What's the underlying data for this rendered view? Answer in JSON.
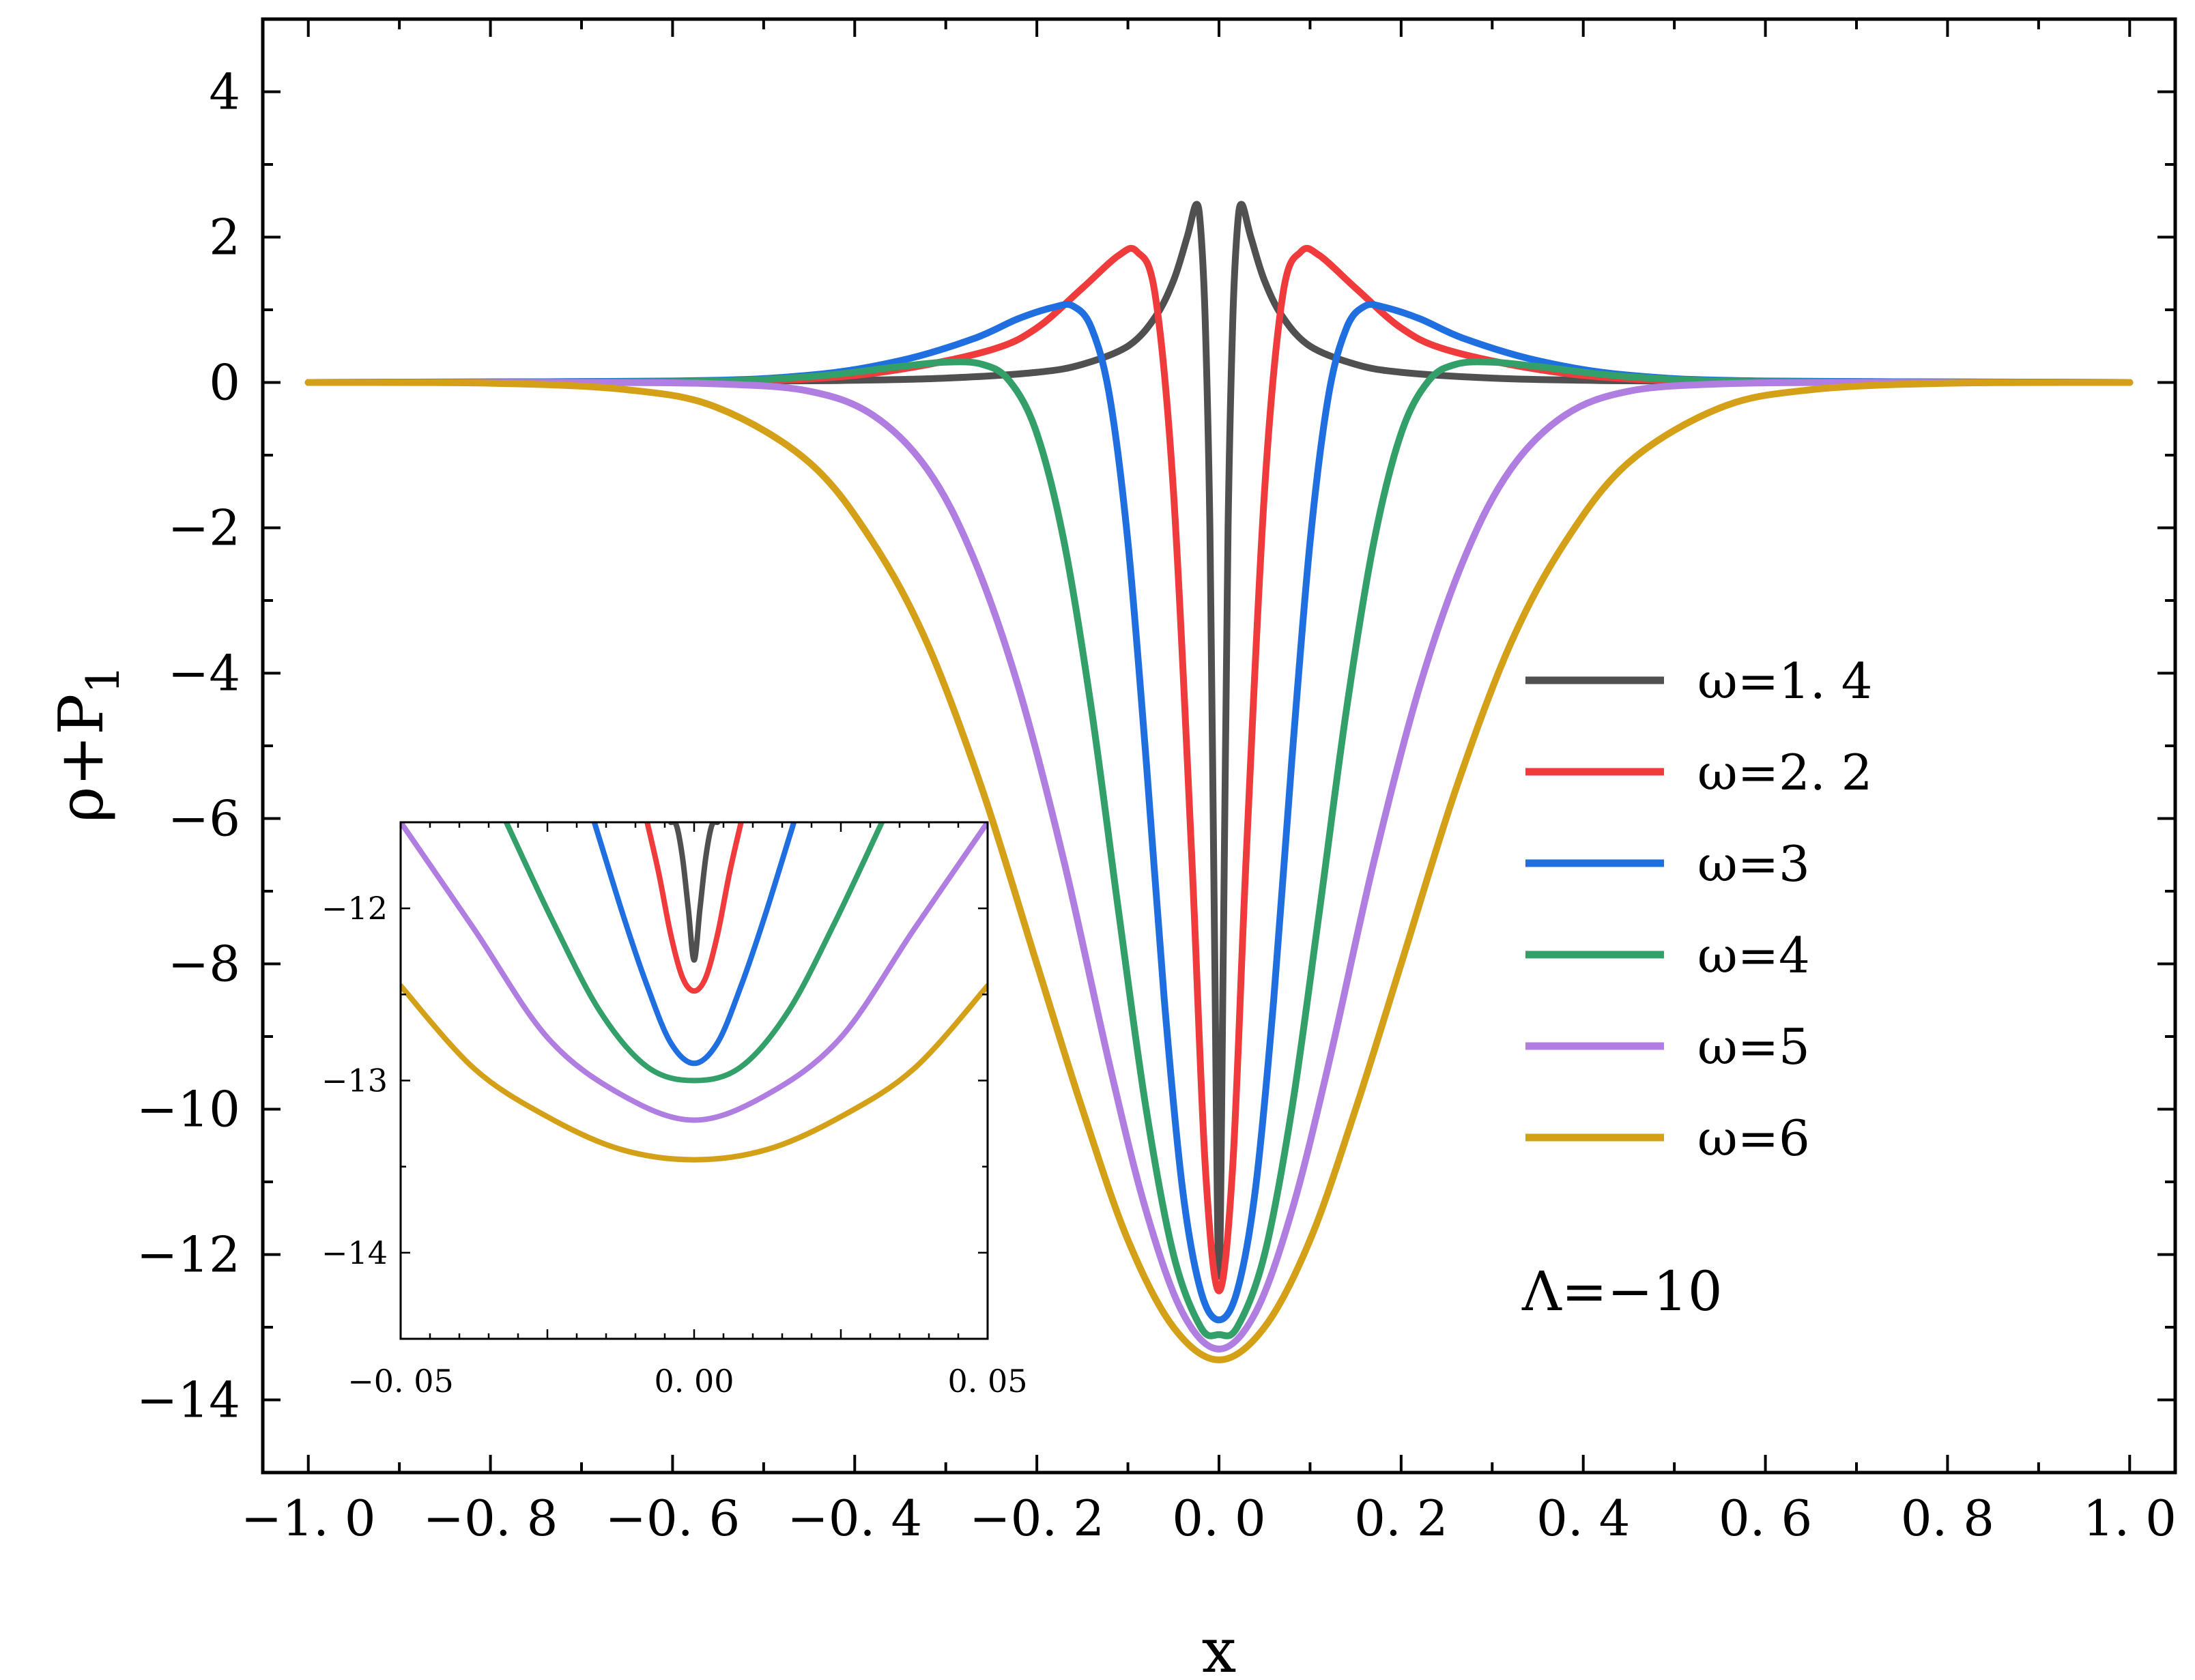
{
  "chart_data": [
    {
      "type": "line",
      "xlabel": "x",
      "ylabel": "ρ+P",
      "ylabel_sub": "1",
      "xlim": [
        -1.05,
        1.05
      ],
      "ylim": [
        -15,
        5
      ],
      "xticks": [
        -1.0,
        -0.8,
        -0.6,
        -0.4,
        -0.2,
        0.0,
        0.2,
        0.4,
        0.6,
        0.8,
        1.0
      ],
      "xtick_labels": [
        "−1. 0",
        "−0. 8",
        "−0. 6",
        "−0. 4",
        "−0. 2",
        "0. 0",
        "0. 2",
        "0. 4",
        "0. 6",
        "0. 8",
        "1. 0"
      ],
      "yticks": [
        4,
        2,
        0,
        -2,
        -4,
        -6,
        -8,
        -10,
        -12,
        -14
      ],
      "ytick_labels": [
        "4",
        "2",
        "0",
        "−2",
        "−4",
        "−6",
        "−8",
        "−10",
        "−12",
        "−14"
      ],
      "grid": false,
      "legend_position": "right",
      "annotation": "Λ=−10",
      "series": [
        {
          "name": "ω=1. 4",
          "color": "#505050",
          "x": [
            -1.0,
            -0.5,
            -0.4,
            -0.3,
            -0.2,
            -0.15,
            -0.1,
            -0.07,
            -0.05,
            -0.035,
            -0.025,
            -0.02,
            -0.015,
            -0.01,
            -0.005,
            0.0,
            0.005,
            0.01,
            0.015,
            0.02,
            0.025,
            0.035,
            0.05,
            0.07,
            0.1,
            0.15,
            0.2,
            0.3,
            0.4,
            0.5,
            1.0
          ],
          "values": [
            0.0,
            0.02,
            0.03,
            0.06,
            0.14,
            0.25,
            0.5,
            0.9,
            1.4,
            2.0,
            2.45,
            2.1,
            0.8,
            -2.0,
            -7.5,
            -12.3,
            -7.5,
            -2.0,
            0.8,
            2.1,
            2.45,
            2.0,
            1.4,
            0.9,
            0.5,
            0.25,
            0.14,
            0.06,
            0.03,
            0.02,
            0.0
          ]
        },
        {
          "name": "ω=2. 2",
          "color": "#ef3b3b",
          "x": [
            -1.0,
            -0.6,
            -0.45,
            -0.35,
            -0.25,
            -0.2,
            -0.15,
            -0.11,
            -0.09,
            -0.07,
            -0.05,
            -0.03,
            -0.015,
            0.0,
            0.015,
            0.03,
            0.05,
            0.07,
            0.09,
            0.11,
            0.15,
            0.2,
            0.25,
            0.35,
            0.45,
            0.6,
            1.0
          ],
          "values": [
            0.0,
            0.01,
            0.05,
            0.18,
            0.45,
            0.75,
            1.3,
            1.75,
            1.8,
            1.2,
            -1.5,
            -6.5,
            -10.8,
            -12.5,
            -10.8,
            -6.5,
            -1.5,
            1.2,
            1.8,
            1.75,
            1.3,
            0.75,
            0.45,
            0.18,
            0.05,
            0.01,
            0.0
          ]
        },
        {
          "name": "ω=3",
          "color": "#1f6fe0",
          "x": [
            -1.0,
            -0.6,
            -0.45,
            -0.35,
            -0.27,
            -0.22,
            -0.18,
            -0.16,
            -0.14,
            -0.12,
            -0.1,
            -0.08,
            -0.06,
            -0.04,
            -0.02,
            0.0,
            0.02,
            0.04,
            0.06,
            0.08,
            0.1,
            0.12,
            0.14,
            0.16,
            0.18,
            0.22,
            0.27,
            0.35,
            0.45,
            0.6,
            1.0
          ],
          "values": [
            0.0,
            0.02,
            0.1,
            0.3,
            0.6,
            0.88,
            1.04,
            1.05,
            0.75,
            -0.2,
            -2.2,
            -5.2,
            -8.5,
            -11.1,
            -12.5,
            -12.9,
            -12.5,
            -11.1,
            -8.5,
            -5.2,
            -2.2,
            -0.2,
            0.75,
            1.05,
            1.04,
            0.88,
            0.6,
            0.3,
            0.1,
            0.02,
            0.0
          ]
        },
        {
          "name": "ω=4",
          "color": "#33a06a",
          "x": [
            -1.0,
            -0.6,
            -0.45,
            -0.35,
            -0.3,
            -0.26,
            -0.23,
            -0.2,
            -0.17,
            -0.14,
            -0.11,
            -0.08,
            -0.05,
            -0.02,
            0.0,
            0.02,
            0.05,
            0.08,
            0.11,
            0.14,
            0.17,
            0.2,
            0.23,
            0.26,
            0.3,
            0.35,
            0.45,
            0.6,
            1.0
          ],
          "values": [
            0.0,
            0.01,
            0.08,
            0.22,
            0.28,
            0.25,
            0.02,
            -0.7,
            -2.2,
            -4.5,
            -7.3,
            -10.0,
            -12.0,
            -13.0,
            -13.1,
            -13.0,
            -12.0,
            -10.0,
            -7.3,
            -4.5,
            -2.2,
            -0.7,
            0.02,
            0.25,
            0.28,
            0.22,
            0.08,
            0.01,
            0.0
          ]
        },
        {
          "name": "ω=5",
          "color": "#b07de0",
          "x": [
            -1.0,
            -0.7,
            -0.55,
            -0.45,
            -0.38,
            -0.32,
            -0.27,
            -0.22,
            -0.17,
            -0.12,
            -0.08,
            -0.04,
            0.0,
            0.04,
            0.08,
            0.12,
            0.17,
            0.22,
            0.27,
            0.32,
            0.38,
            0.45,
            0.55,
            0.7,
            1.0
          ],
          "values": [
            0.0,
            0.0,
            -0.02,
            -0.12,
            -0.45,
            -1.2,
            -2.4,
            -4.2,
            -6.6,
            -9.4,
            -11.4,
            -12.8,
            -13.3,
            -12.8,
            -11.4,
            -9.4,
            -6.6,
            -4.2,
            -2.4,
            -1.2,
            -0.45,
            -0.12,
            -0.02,
            0.0,
            0.0
          ]
        },
        {
          "name": "ω=6",
          "color": "#d4a017",
          "x": [
            -1.0,
            -0.8,
            -0.65,
            -0.55,
            -0.45,
            -0.38,
            -0.32,
            -0.26,
            -0.2,
            -0.15,
            -0.1,
            -0.05,
            0.0,
            0.05,
            0.1,
            0.15,
            0.2,
            0.26,
            0.32,
            0.38,
            0.45,
            0.55,
            0.65,
            0.8,
            1.0
          ],
          "values": [
            0.0,
            -0.01,
            -0.1,
            -0.35,
            -1.1,
            -2.2,
            -3.6,
            -5.6,
            -8.0,
            -10.0,
            -11.8,
            -13.0,
            -13.45,
            -13.0,
            -11.8,
            -10.0,
            -8.0,
            -5.6,
            -3.6,
            -2.2,
            -1.1,
            -0.35,
            -0.1,
            -0.01,
            0.0
          ]
        }
      ]
    },
    {
      "type": "line",
      "xlim": [
        -0.05,
        0.05
      ],
      "ylim": [
        -14.5,
        -11.5
      ],
      "xticks": [
        -0.05,
        0.0,
        0.05
      ],
      "xtick_labels": [
        "−0. 05",
        "0. 00",
        "0. 05"
      ],
      "yticks": [
        -12,
        -13,
        -14
      ],
      "ytick_labels": [
        "−12",
        "−13",
        "−14"
      ],
      "grid": false,
      "series": [
        {
          "name": "ω=1. 4",
          "color": "#505050",
          "x": [
            -0.004,
            -0.003,
            -0.002,
            -0.001,
            0.0,
            0.001,
            0.002,
            0.003,
            0.004
          ],
          "values": [
            -11.5,
            -11.52,
            -11.7,
            -12.0,
            -12.3,
            -12.0,
            -11.7,
            -11.52,
            -11.5
          ]
        },
        {
          "name": "ω=2. 2",
          "color": "#ef3b3b",
          "x": [
            -0.008,
            -0.006,
            -0.004,
            -0.002,
            0.0,
            0.002,
            0.004,
            0.006,
            0.008
          ],
          "values": [
            -11.5,
            -11.8,
            -12.15,
            -12.4,
            -12.48,
            -12.4,
            -12.15,
            -11.8,
            -11.5
          ]
        },
        {
          "name": "ω=3",
          "color": "#1f6fe0",
          "x": [
            -0.017,
            -0.012,
            -0.008,
            -0.004,
            0.0,
            0.004,
            0.008,
            0.012,
            0.017
          ],
          "values": [
            -11.5,
            -12.05,
            -12.45,
            -12.78,
            -12.9,
            -12.78,
            -12.45,
            -12.05,
            -11.5
          ]
        },
        {
          "name": "ω=4",
          "color": "#33a06a",
          "x": [
            -0.032,
            -0.024,
            -0.016,
            -0.008,
            0.0,
            0.008,
            0.016,
            0.024,
            0.032
          ],
          "values": [
            -11.5,
            -12.08,
            -12.6,
            -12.92,
            -13.0,
            -12.92,
            -12.6,
            -12.08,
            -11.5
          ]
        },
        {
          "name": "ω=5",
          "color": "#b07de0",
          "x": [
            -0.05,
            -0.0375,
            -0.025,
            -0.0125,
            0.0,
            0.0125,
            0.025,
            0.0375,
            0.05
          ],
          "values": [
            -11.5,
            -12.12,
            -12.75,
            -13.08,
            -13.23,
            -13.08,
            -12.75,
            -12.12,
            -11.5
          ]
        },
        {
          "name": "ω=6",
          "color": "#d4a017",
          "x": [
            -0.05,
            -0.0375,
            -0.025,
            -0.0125,
            0.0,
            0.0125,
            0.025,
            0.0375,
            0.05
          ],
          "values": [
            -12.45,
            -12.93,
            -13.21,
            -13.4,
            -13.46,
            -13.4,
            -13.21,
            -12.93,
            -12.45
          ]
        }
      ]
    }
  ]
}
